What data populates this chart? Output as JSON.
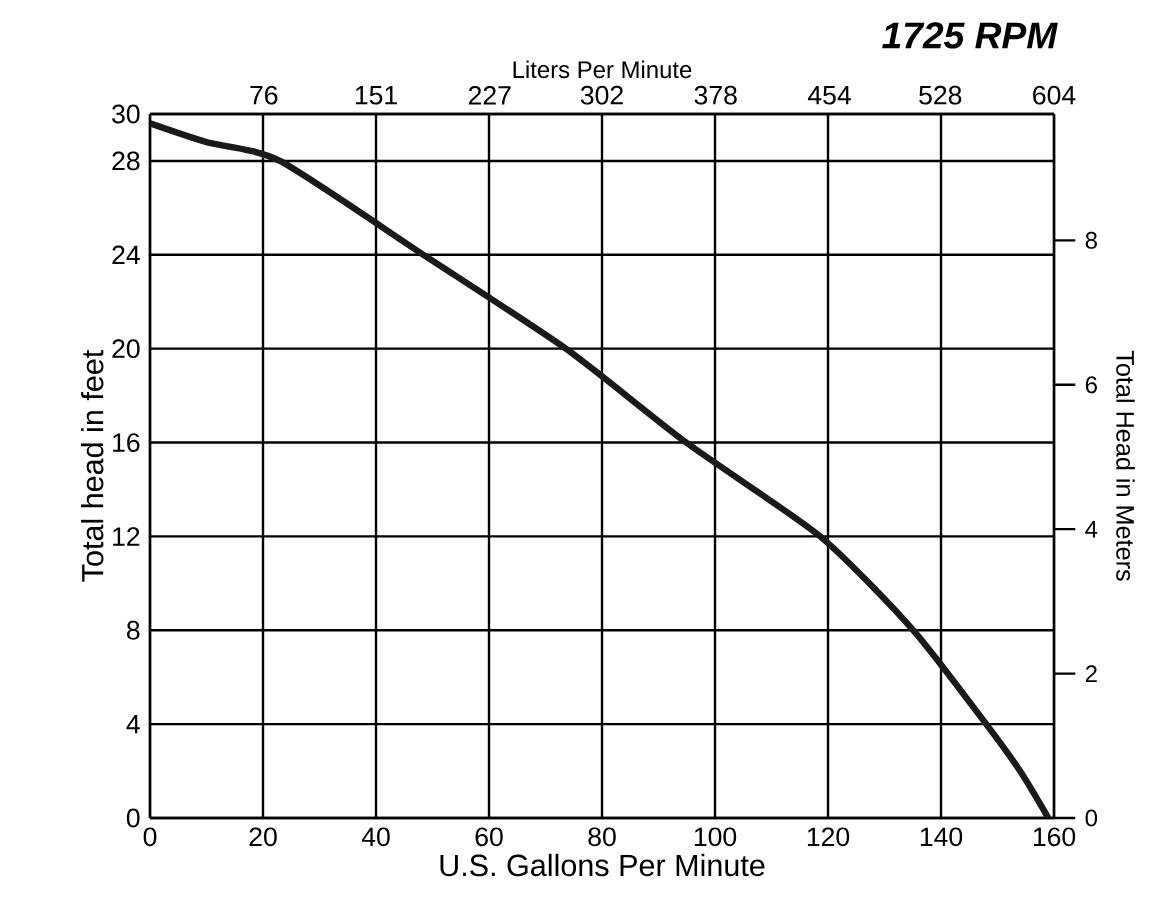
{
  "chart_data": {
    "type": "line",
    "subtitle": "**1725 RPM**",
    "xlabel": "U.S. Gallons Per Minute",
    "ylabel": "Total head in feet",
    "y2label": "Total Head in Meters",
    "x2label": "Liters Per Minute",
    "xlim": [
      0,
      160
    ],
    "xticks": [
      0,
      20,
      40,
      60,
      80,
      100,
      120,
      140,
      160
    ],
    "ylim": [
      0,
      30
    ],
    "yticks": [
      0,
      4,
      8,
      12,
      16,
      20,
      24,
      28,
      30
    ],
    "y2lim": [
      0,
      9.75
    ],
    "y2ticks": [
      0,
      2,
      4,
      6,
      8
    ],
    "x2lim": [
      0,
      604
    ],
    "x2ticks": [
      76,
      151,
      227,
      302,
      378,
      454,
      528,
      604
    ],
    "grid": true,
    "marker": "none",
    "line_style": "solid",
    "series": [
      {
        "color": "#1a1a1a",
        "x": [
          0,
          10,
          23,
          48.4,
          73.6,
          94.9,
          118.6,
          135.1,
          148,
          154,
          159
        ],
        "values": [
          29.6,
          28.8,
          28,
          24,
          20,
          16,
          12,
          8,
          4,
          2,
          0
        ]
      }
    ]
  }
}
